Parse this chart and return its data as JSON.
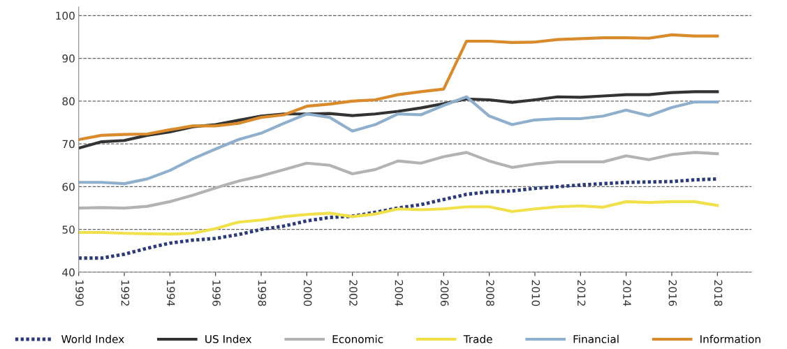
{
  "chart_data": {
    "type": "line",
    "x": [
      1990,
      1991,
      1992,
      1993,
      1994,
      1995,
      1996,
      1997,
      1998,
      1999,
      2000,
      2001,
      2002,
      2003,
      2004,
      2005,
      2006,
      2007,
      2008,
      2009,
      2010,
      2011,
      2012,
      2013,
      2014,
      2015,
      2016,
      2017,
      2018
    ],
    "xlim": [
      1990,
      2019.5
    ],
    "xticks": [
      1990,
      1992,
      1994,
      1996,
      1998,
      2000,
      2002,
      2004,
      2006,
      2008,
      2010,
      2012,
      2014,
      2016,
      2018
    ],
    "ylim": [
      40,
      102
    ],
    "yticks": [
      40,
      50,
      60,
      70,
      80,
      90,
      100
    ],
    "grid": "y",
    "legend": "bottom",
    "series": [
      {
        "name": "World Index",
        "color": "#2b3a7a",
        "line_style": "dotted",
        "values": [
          43.3,
          43.3,
          44.2,
          45.6,
          46.8,
          47.5,
          47.9,
          48.8,
          50,
          50.8,
          52,
          52.8,
          53.1,
          54,
          55,
          55.8,
          57,
          58.2,
          58.8,
          59,
          59.6,
          60,
          60.4,
          60.7,
          61,
          61.1,
          61.2,
          61.6,
          61.8
        ]
      },
      {
        "name": "US Index",
        "color": "#333333",
        "line_style": "solid",
        "values": [
          69,
          70.5,
          70.8,
          72,
          72.8,
          74,
          74.5,
          75.5,
          76.5,
          77,
          77,
          77.1,
          76.6,
          77,
          77.6,
          78.4,
          79.4,
          80.5,
          80.3,
          79.7,
          80.3,
          81,
          80.9,
          81.2,
          81.5,
          81.5,
          82,
          82.2,
          82.2
        ]
      },
      {
        "name": "Economic",
        "color": "#b3b3b3",
        "line_style": "solid",
        "values": [
          55,
          55.1,
          55,
          55.4,
          56.5,
          58,
          59.7,
          61.3,
          62.5,
          64,
          65.5,
          65,
          63,
          64,
          66,
          65.5,
          67,
          68,
          66,
          64.5,
          65.3,
          65.8,
          65.8,
          65.8,
          67.2,
          66.3,
          67.5,
          68,
          67.7
        ]
      },
      {
        "name": "Trade",
        "color": "#f0e04a",
        "line_style": "solid",
        "values": [
          49.3,
          49.3,
          49.1,
          49,
          48.9,
          49.1,
          50.2,
          51.7,
          52.2,
          53,
          53.5,
          53.8,
          53,
          53.6,
          54.8,
          54.6,
          54.8,
          55.3,
          55.3,
          54.2,
          54.8,
          55.3,
          55.5,
          55.2,
          56.5,
          56.3,
          56.5,
          56.5,
          55.6
        ]
      },
      {
        "name": "Financial",
        "color": "#8fb0cc",
        "line_style": "solid",
        "values": [
          61,
          61,
          60.7,
          61.8,
          63.8,
          66.5,
          68.8,
          71,
          72.5,
          74.8,
          77,
          76.2,
          73,
          74.5,
          77,
          76.8,
          79,
          81,
          76.5,
          74.5,
          75.6,
          75.9,
          75.9,
          76.5,
          77.9,
          76.6,
          78.5,
          79.8,
          79.8
        ]
      },
      {
        "name": "Information",
        "color": "#d98a2b",
        "line_style": "solid",
        "values": [
          71,
          72,
          72.2,
          72.3,
          73.3,
          74.2,
          74.2,
          74.8,
          76.2,
          76.8,
          78.8,
          79.3,
          80,
          80.3,
          81.5,
          82.2,
          82.8,
          94,
          94,
          93.7,
          93.8,
          94.4,
          94.6,
          94.8,
          94.8,
          94.7,
          95.5,
          95.2,
          95.2
        ]
      }
    ]
  }
}
